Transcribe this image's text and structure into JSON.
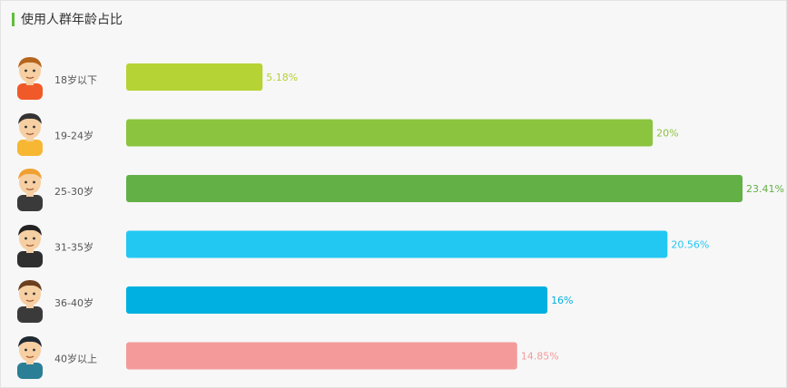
{
  "header": {
    "title": "使用人群年龄占比"
  },
  "chart_data": {
    "type": "bar",
    "orientation": "horizontal",
    "title": "使用人群年龄占比",
    "categories": [
      "18岁以下",
      "19-24岁",
      "25-30岁",
      "31-35岁",
      "36-40岁",
      "40岁以上"
    ],
    "values": [
      5.18,
      20,
      23.41,
      20.56,
      16,
      14.85
    ],
    "value_labels": [
      "5.18%",
      "20%",
      "23.41%",
      "20.56%",
      "16%",
      "14.85%"
    ],
    "colors": [
      "#b5d334",
      "#8bc43f",
      "#63b046",
      "#22c8f2",
      "#00b0e0",
      "#f49a9a"
    ],
    "xlim": [
      0,
      23.41
    ],
    "grid": false,
    "legend": "none"
  },
  "avatars": [
    {
      "icon": "boy-red-shirt-icon",
      "hair": "#b5651d",
      "shirt": "#f05a28",
      "skin": "#f6cfa3"
    },
    {
      "icon": "young-man-yellow-shirt-icon",
      "hair": "#333333",
      "shirt": "#f7b733",
      "skin": "#f6cfa3"
    },
    {
      "icon": "blond-man-suit-icon",
      "hair": "#f0a030",
      "shirt": "#3a3a3a",
      "skin": "#f6cfa3"
    },
    {
      "icon": "businessman-suit-icon",
      "hair": "#222222",
      "shirt": "#2f2f2f",
      "skin": "#f6cfa3"
    },
    {
      "icon": "mustache-man-suit-icon",
      "hair": "#6b3f1f",
      "shirt": "#3a3a3a",
      "skin": "#f6cfa3"
    },
    {
      "icon": "man-teal-shirt-icon",
      "hair": "#1f2a33",
      "shirt": "#2a7f96",
      "skin": "#f6cfa3"
    }
  ]
}
